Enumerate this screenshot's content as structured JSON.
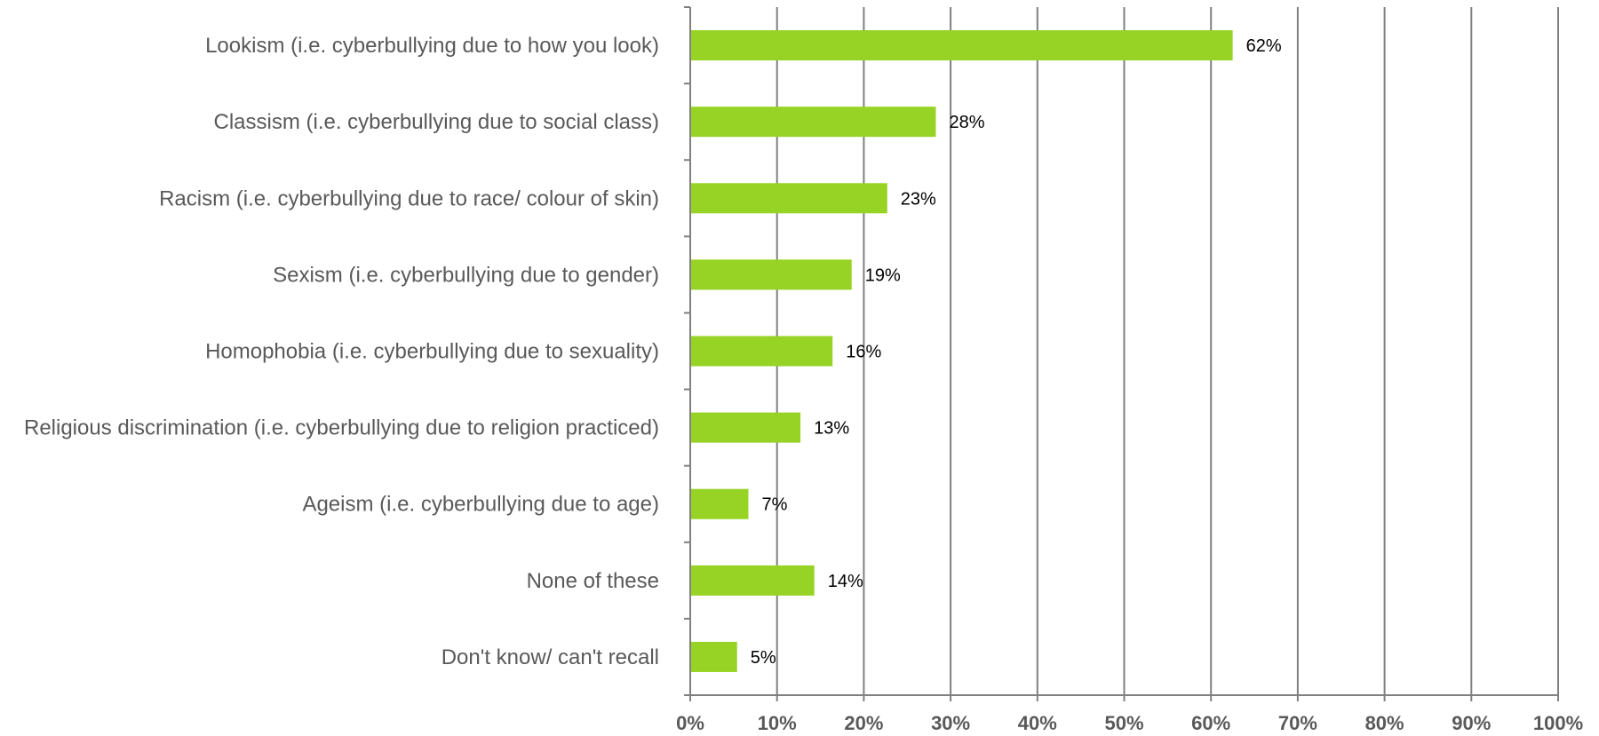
{
  "chart_data": {
    "type": "bar",
    "orientation": "horizontal",
    "categories": [
      "Lookism (i.e. cyberbullying due to how you look)",
      "Classism (i.e. cyberbullying due to social class)",
      "Racism (i.e. cyberbullying due to race/ colour of skin)",
      "Sexism (i.e. cyberbullying due to gender)",
      "Homophobia (i.e. cyberbullying due to sexuality)",
      "Religious discrimination (i.e. cyberbullying due to religion practiced)",
      "Ageism (i.e. cyberbullying due to age)",
      "None of these",
      "Don't know/ can't recall"
    ],
    "values": [
      62.5,
      28.3,
      22.7,
      18.6,
      16.4,
      12.7,
      6.7,
      14.3,
      5.4
    ],
    "data_labels": [
      "62%",
      "28%",
      "23%",
      "19%",
      "16%",
      "13%",
      "7%",
      "14%",
      "5%"
    ],
    "xlim": [
      0,
      100
    ],
    "x_ticks": [
      0,
      10,
      20,
      30,
      40,
      50,
      60,
      70,
      80,
      90,
      100
    ],
    "x_tick_labels": [
      "0%",
      "10%",
      "20%",
      "30%",
      "40%",
      "50%",
      "60%",
      "70%",
      "80%",
      "90%",
      "100%"
    ],
    "grid": "vertical",
    "legend": "none",
    "title": "",
    "xlabel": "",
    "ylabel": "",
    "colors": {
      "bar": "#97d325",
      "grid": "#808080",
      "axis": "#808080",
      "label": "#595959"
    }
  }
}
